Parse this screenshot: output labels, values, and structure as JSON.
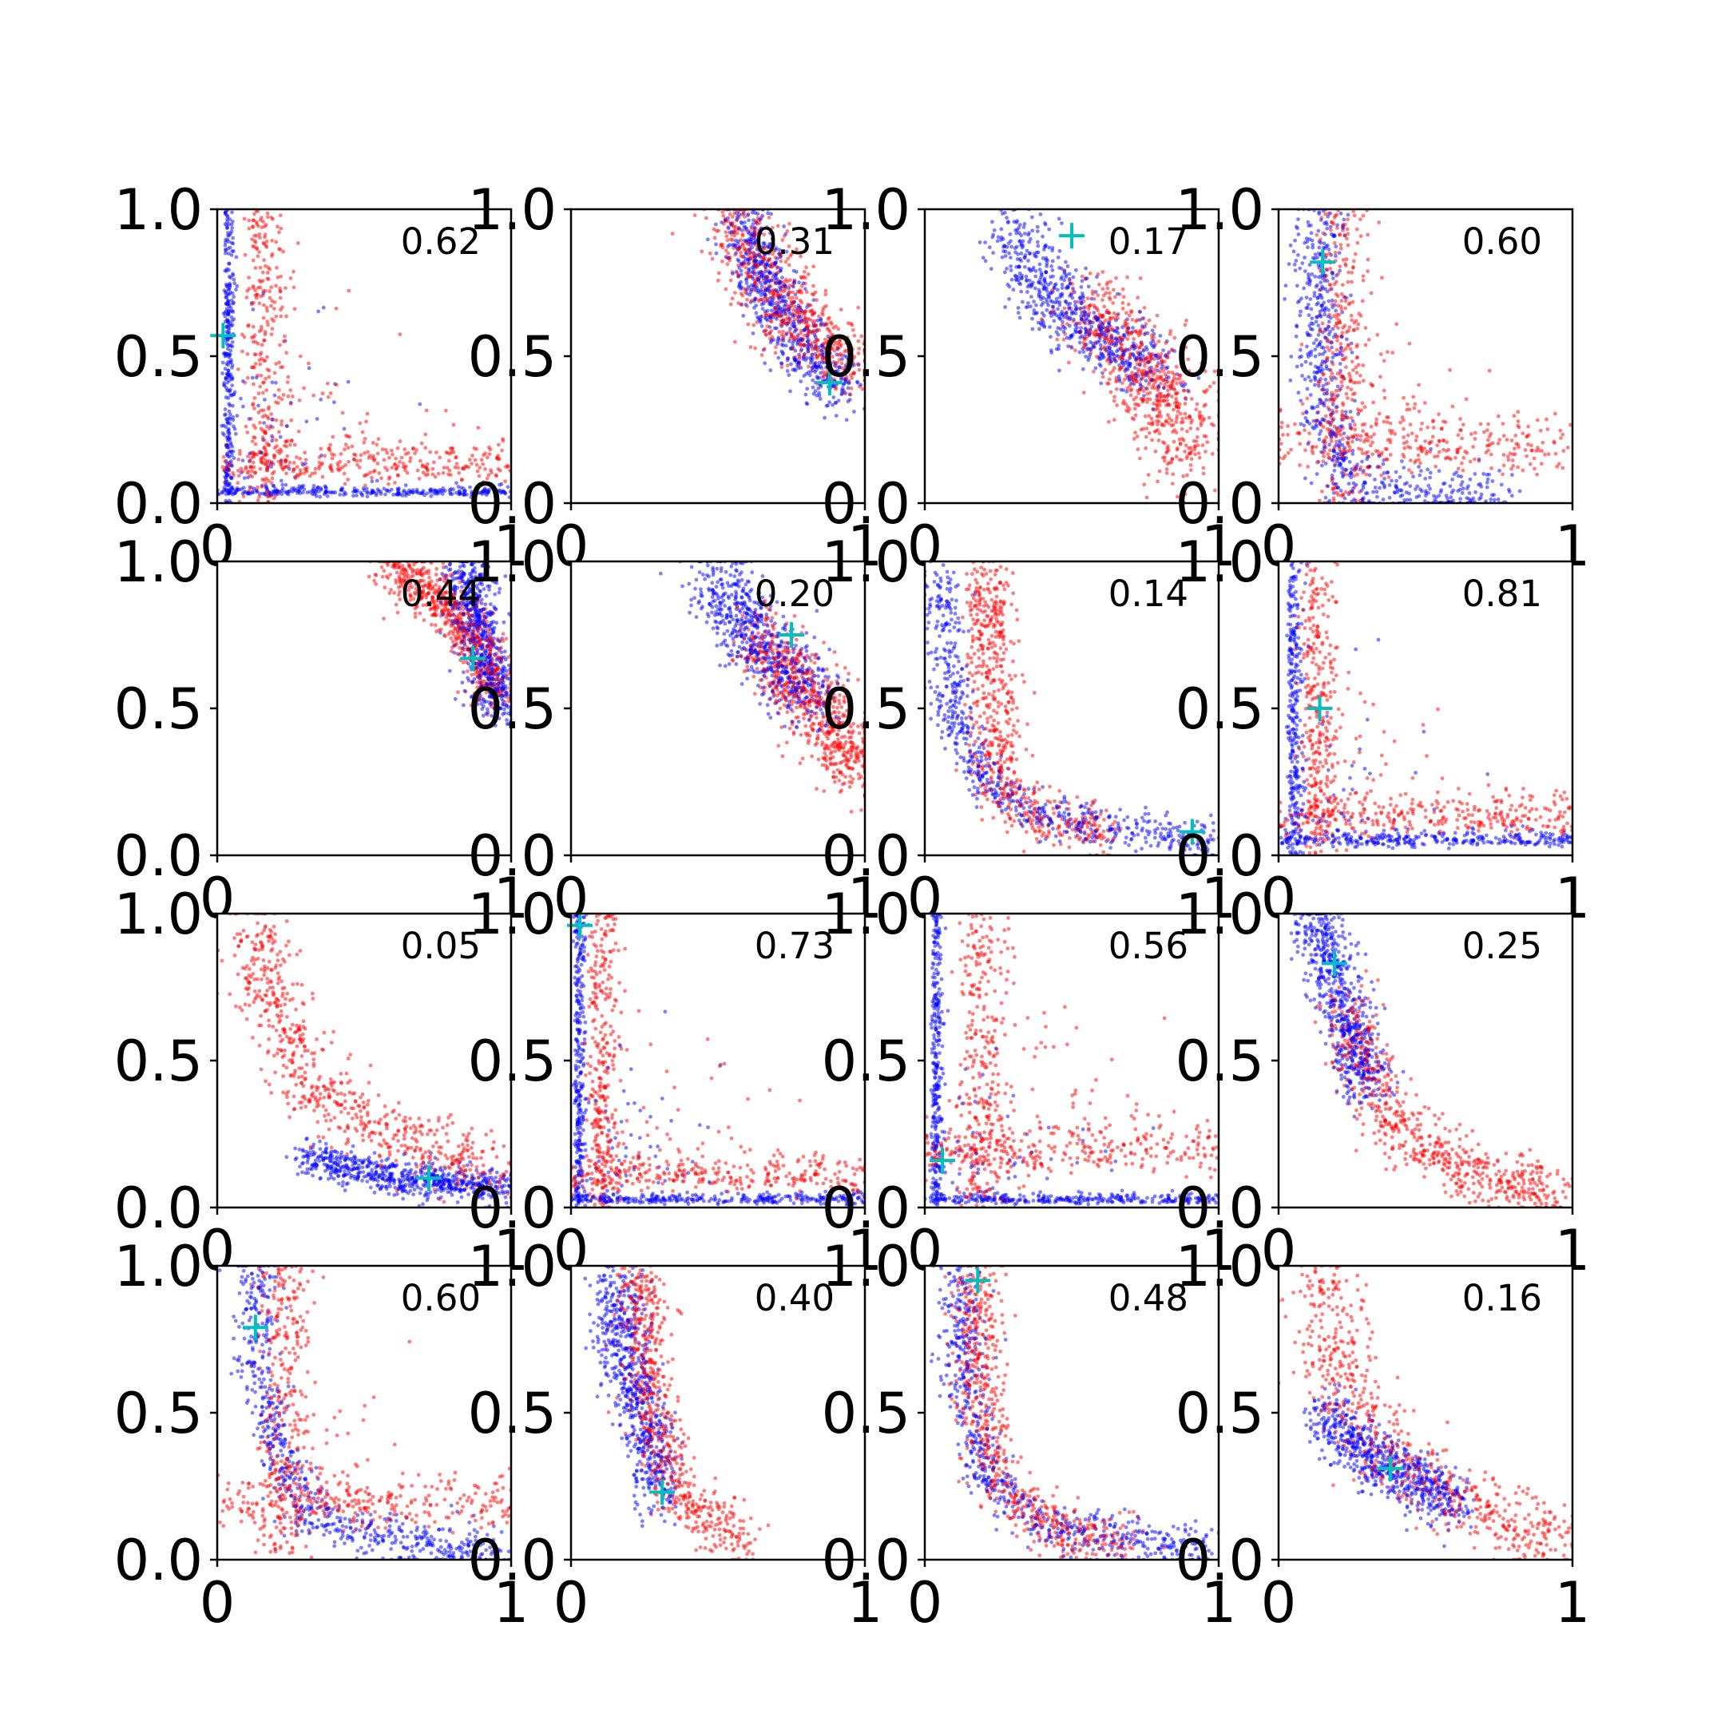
{
  "chart_data": {
    "type": "scatter",
    "layout": "4x4 grid of scatter panels",
    "xlim": [
      0,
      1
    ],
    "ylim": [
      0,
      1
    ],
    "xticks": [
      "0",
      "1"
    ],
    "yticks": [
      "0.0",
      "0.5",
      "1.0"
    ],
    "marker_colors": {
      "series_1": "#0000ff",
      "series_2": "#ff0000",
      "cross": "#00bfbf"
    },
    "panels": [
      {
        "annotation": "0.62",
        "cross": {
          "x": 0.02,
          "y": 0.57
        },
        "blue": {
          "kind": "L",
          "cx": 0.03,
          "cy": 0.03,
          "sx": 0.02,
          "sy": 0.02
        },
        "red": {
          "kind": "L",
          "cx": 0.12,
          "cy": 0.1,
          "sx": 0.08,
          "sy": 0.08
        }
      },
      {
        "annotation": "0.31",
        "cross": {
          "x": 0.88,
          "y": 0.41
        },
        "blue": {
          "kind": "curve",
          "pts": [
            [
              0.58,
              0.99
            ],
            [
              0.66,
              0.75
            ],
            [
              0.78,
              0.52
            ],
            [
              0.92,
              0.38
            ]
          ],
          "sw": 0.05
        },
        "red": {
          "kind": "curve",
          "pts": [
            [
              0.55,
              0.98
            ],
            [
              0.64,
              0.82
            ],
            [
              0.75,
              0.63
            ],
            [
              0.97,
              0.45
            ]
          ],
          "sw": 0.06
        }
      },
      {
        "annotation": "0.17",
        "cross": {
          "x": 0.5,
          "y": 0.91
        },
        "blue": {
          "kind": "curve",
          "pts": [
            [
              0.3,
              0.93
            ],
            [
              0.42,
              0.72
            ],
            [
              0.55,
              0.58
            ],
            [
              0.8,
              0.45
            ]
          ],
          "sw": 0.06
        },
        "red": {
          "kind": "curve",
          "pts": [
            [
              0.55,
              0.7
            ],
            [
              0.72,
              0.48
            ],
            [
              0.82,
              0.32
            ],
            [
              0.9,
              0.15
            ]
          ],
          "sw": 0.07
        }
      },
      {
        "annotation": "0.60",
        "cross": {
          "x": 0.15,
          "y": 0.82
        },
        "blue": {
          "kind": "curve",
          "pts": [
            [
              0.14,
              1.0
            ],
            [
              0.13,
              0.6
            ],
            [
              0.15,
              0.3
            ],
            [
              0.25,
              0.05
            ],
            [
              0.75,
              0.03
            ]
          ],
          "sw": 0.045
        },
        "red": {
          "kind": "L",
          "cx": 0.17,
          "cy": 0.15,
          "sx": 0.1,
          "sy": 0.12
        }
      },
      {
        "annotation": "0.44",
        "cross": {
          "x": 0.87,
          "y": 0.67
        },
        "blue": {
          "kind": "curve",
          "pts": [
            [
              0.85,
              0.99
            ],
            [
              0.88,
              0.8
            ],
            [
              0.93,
              0.62
            ],
            [
              0.97,
              0.5
            ]
          ],
          "sw": 0.04
        },
        "red": {
          "kind": "curve",
          "pts": [
            [
              0.6,
              0.98
            ],
            [
              0.75,
              0.88
            ],
            [
              0.88,
              0.72
            ],
            [
              0.95,
              0.55
            ]
          ],
          "sw": 0.045
        }
      },
      {
        "annotation": "0.20",
        "cross": {
          "x": 0.75,
          "y": 0.75
        },
        "blue": {
          "kind": "curve",
          "pts": [
            [
              0.5,
              0.96
            ],
            [
              0.6,
              0.78
            ],
            [
              0.72,
              0.62
            ],
            [
              0.85,
              0.52
            ]
          ],
          "sw": 0.06
        },
        "red": {
          "kind": "curve",
          "pts": [
            [
              0.65,
              0.75
            ],
            [
              0.78,
              0.56
            ],
            [
              0.9,
              0.42
            ],
            [
              0.98,
              0.28
            ]
          ],
          "sw": 0.06
        }
      },
      {
        "annotation": "0.14",
        "cross": {
          "x": 0.91,
          "y": 0.08
        },
        "blue": {
          "kind": "curve",
          "pts": [
            [
              0.05,
              0.95
            ],
            [
              0.1,
              0.45
            ],
            [
              0.22,
              0.22
            ],
            [
              0.45,
              0.12
            ],
            [
              0.98,
              0.05
            ]
          ],
          "sw": 0.035
        },
        "red": {
          "kind": "curve",
          "pts": [
            [
              0.22,
              0.98
            ],
            [
              0.22,
              0.55
            ],
            [
              0.25,
              0.25
            ],
            [
              0.38,
              0.12
            ],
            [
              0.6,
              0.08
            ]
          ],
          "sw": 0.045
        }
      },
      {
        "annotation": "0.81",
        "cross": {
          "x": 0.14,
          "y": 0.5
        },
        "blue": {
          "kind": "L",
          "cx": 0.04,
          "cy": 0.04,
          "sx": 0.03,
          "sy": 0.03
        },
        "red": {
          "kind": "L",
          "cx": 0.1,
          "cy": 0.1,
          "sx": 0.07,
          "sy": 0.08
        }
      },
      {
        "annotation": "0.05",
        "cross": {
          "x": 0.72,
          "y": 0.1
        },
        "blue": {
          "kind": "curve",
          "pts": [
            [
              0.3,
              0.18
            ],
            [
              0.45,
              0.13
            ],
            [
              0.7,
              0.09
            ],
            [
              0.98,
              0.07
            ]
          ],
          "sw": 0.03
        },
        "red": {
          "kind": "curve",
          "pts": [
            [
              0.12,
              0.98
            ],
            [
              0.2,
              0.65
            ],
            [
              0.35,
              0.38
            ],
            [
              0.6,
              0.25
            ],
            [
              0.95,
              0.12
            ]
          ],
          "sw": 0.06
        }
      },
      {
        "annotation": "0.73",
        "cross": {
          "x": 0.03,
          "y": 0.96
        },
        "blue": {
          "kind": "L",
          "cx": 0.02,
          "cy": 0.02,
          "sx": 0.02,
          "sy": 0.02
        },
        "red": {
          "kind": "L",
          "cx": 0.08,
          "cy": 0.08,
          "sx": 0.06,
          "sy": 0.07
        }
      },
      {
        "annotation": "0.56",
        "cross": {
          "x": 0.06,
          "y": 0.16
        },
        "blue": {
          "kind": "L",
          "cx": 0.03,
          "cy": 0.02,
          "sx": 0.02,
          "sy": 0.02
        },
        "red": {
          "kind": "L",
          "cx": 0.15,
          "cy": 0.15,
          "sx": 0.1,
          "sy": 0.1
        }
      },
      {
        "annotation": "0.25",
        "cross": {
          "x": 0.19,
          "y": 0.83
        },
        "blue": {
          "kind": "curve",
          "pts": [
            [
              0.12,
              1.0
            ],
            [
              0.2,
              0.75
            ],
            [
              0.26,
              0.55
            ],
            [
              0.3,
              0.4
            ]
          ],
          "sw": 0.045
        },
        "red": {
          "kind": "curve",
          "pts": [
            [
              0.22,
              0.72
            ],
            [
              0.3,
              0.45
            ],
            [
              0.42,
              0.25
            ],
            [
              0.65,
              0.12
            ],
            [
              0.95,
              0.05
            ]
          ],
          "sw": 0.05
        }
      },
      {
        "annotation": "0.60",
        "cross": {
          "x": 0.13,
          "y": 0.79
        },
        "blue": {
          "kind": "curve",
          "pts": [
            [
              0.13,
              1.0
            ],
            [
              0.14,
              0.65
            ],
            [
              0.2,
              0.35
            ],
            [
              0.35,
              0.12
            ],
            [
              0.95,
              0.02
            ]
          ],
          "sw": 0.04
        },
        "red": {
          "kind": "L",
          "cx": 0.18,
          "cy": 0.15,
          "sx": 0.1,
          "sy": 0.1
        }
      },
      {
        "annotation": "0.40",
        "cross": {
          "x": 0.31,
          "y": 0.23
        },
        "blue": {
          "kind": "curve",
          "pts": [
            [
              0.15,
              0.98
            ],
            [
              0.18,
              0.7
            ],
            [
              0.25,
              0.45
            ],
            [
              0.3,
              0.2
            ]
          ],
          "sw": 0.045
        },
        "red": {
          "kind": "curve",
          "pts": [
            [
              0.24,
              0.98
            ],
            [
              0.25,
              0.65
            ],
            [
              0.3,
              0.38
            ],
            [
              0.4,
              0.18
            ],
            [
              0.6,
              0.06
            ]
          ],
          "sw": 0.045
        }
      },
      {
        "annotation": "0.48",
        "cross": {
          "x": 0.18,
          "y": 0.95
        },
        "blue": {
          "kind": "curve",
          "pts": [
            [
              0.12,
              1.0
            ],
            [
              0.14,
              0.6
            ],
            [
              0.2,
              0.3
            ],
            [
              0.4,
              0.12
            ],
            [
              0.95,
              0.03
            ]
          ],
          "sw": 0.04
        },
        "red": {
          "kind": "curve",
          "pts": [
            [
              0.17,
              1.0
            ],
            [
              0.19,
              0.55
            ],
            [
              0.25,
              0.25
            ],
            [
              0.45,
              0.1
            ],
            [
              0.7,
              0.05
            ]
          ],
          "sw": 0.045
        }
      },
      {
        "annotation": "0.16",
        "cross": {
          "x": 0.38,
          "y": 0.31
        },
        "blue": {
          "kind": "curve",
          "pts": [
            [
              0.15,
              0.5
            ],
            [
              0.3,
              0.35
            ],
            [
              0.45,
              0.28
            ],
            [
              0.6,
              0.18
            ]
          ],
          "sw": 0.05
        },
        "red": {
          "kind": "curve",
          "pts": [
            [
              0.15,
              0.95
            ],
            [
              0.2,
              0.6
            ],
            [
              0.35,
              0.38
            ],
            [
              0.6,
              0.2
            ],
            [
              0.95,
              0.08
            ]
          ],
          "sw": 0.06
        }
      }
    ]
  }
}
